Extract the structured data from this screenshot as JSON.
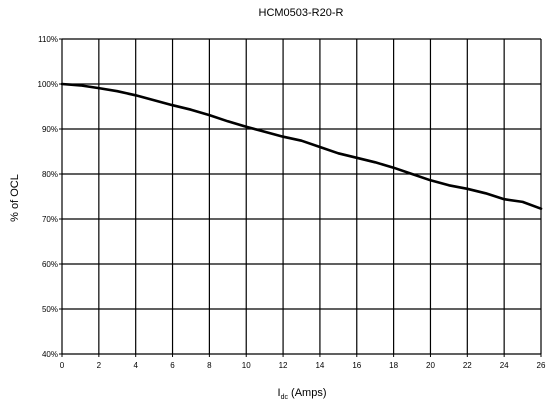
{
  "chart_data": {
    "type": "line",
    "title": "HCM0503-R20-R",
    "xlabel": {
      "main": "I",
      "sub": "dc",
      "rest": " (Amps)"
    },
    "ylabel": "% of OCL",
    "xlim": [
      0,
      26
    ],
    "ylim": [
      40,
      110
    ],
    "x_ticks": [
      0,
      2,
      4,
      6,
      8,
      10,
      12,
      14,
      16,
      18,
      20,
      22,
      24,
      26
    ],
    "y_ticks": [
      40,
      50,
      60,
      70,
      80,
      90,
      100,
      110
    ],
    "y_tick_suffix": "%",
    "grid": true,
    "series": [
      {
        "x": [
          0,
          1,
          2,
          3,
          4,
          5,
          6,
          7,
          8,
          9,
          10,
          11,
          12,
          13,
          14,
          15,
          16,
          17,
          18,
          19,
          20,
          21,
          22,
          23,
          24,
          25,
          26
        ],
        "y": [
          100,
          99.7,
          99.1,
          98.4,
          97.5,
          96.4,
          95.3,
          94.3,
          93.1,
          91.7,
          90.5,
          89.4,
          88.3,
          87.4,
          86.0,
          84.6,
          83.6,
          82.6,
          81.4,
          80.0,
          78.6,
          77.5,
          76.7,
          75.7,
          74.4,
          73.8,
          72.3
        ]
      }
    ]
  }
}
